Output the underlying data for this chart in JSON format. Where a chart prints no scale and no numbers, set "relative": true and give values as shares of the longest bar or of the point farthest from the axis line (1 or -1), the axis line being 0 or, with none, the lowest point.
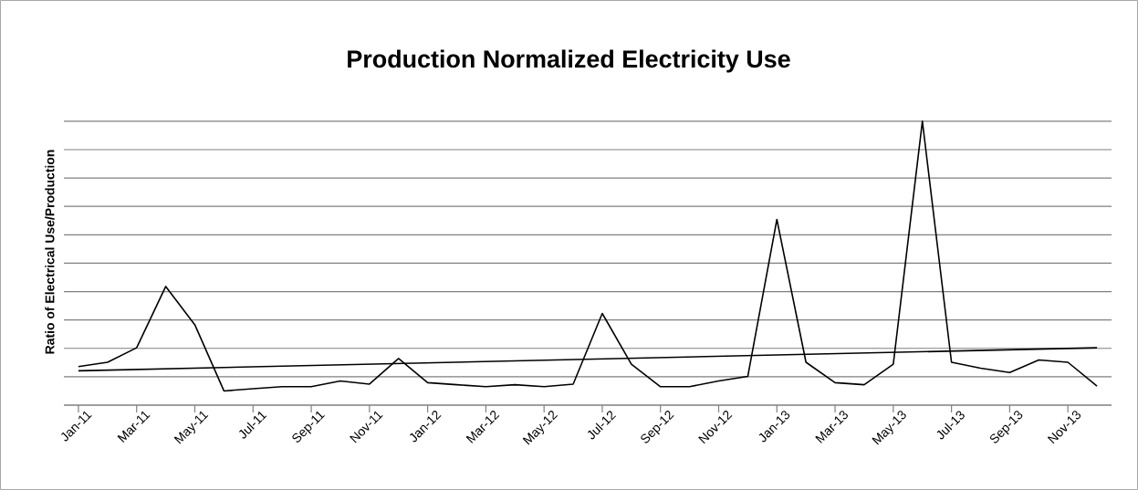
{
  "chart_data": {
    "type": "line",
    "title": "Production Normalized Electricity Use",
    "ylabel": "Ratio of Electrical Use/Production",
    "categories": [
      "Jan-11",
      null,
      "Mar-11",
      null,
      "May-11",
      null,
      "Jul-11",
      null,
      "Sep-11",
      null,
      "Nov-11",
      null,
      "Jan-12",
      null,
      "Mar-12",
      null,
      "May-12",
      null,
      "Jul-12",
      null,
      "Sep-12",
      null,
      "Nov-12",
      null,
      "Jan-13",
      null,
      "Mar-13",
      null,
      "May-13",
      null,
      "Jul-13",
      null,
      "Sep-13",
      null,
      "Nov-13",
      null
    ],
    "relative": true,
    "grid": "y",
    "marker": "none",
    "line_style": "solid",
    "series": [
      {
        "color": "#000000",
        "values": [
          0.136,
          0.151,
          0.202,
          0.418,
          0.283,
          0.05,
          0.058,
          0.065,
          0.065,
          0.085,
          0.074,
          0.164,
          0.079,
          0.072,
          0.065,
          0.072,
          0.065,
          0.074,
          0.323,
          0.144,
          0.065,
          0.065,
          0.085,
          0.101,
          0.654,
          0.151,
          0.079,
          0.072,
          0.144,
          1,
          0.151,
          0.13,
          0.115,
          0.159,
          0.151,
          0.067
        ]
      },
      {
        "type": "line",
        "color": "#000000",
        "values": [
          0.121,
          null,
          null,
          null,
          null,
          null,
          null,
          null,
          null,
          null,
          null,
          null,
          null,
          null,
          null,
          null,
          null,
          null,
          null,
          null,
          null,
          null,
          null,
          null,
          null,
          null,
          null,
          null,
          null,
          null,
          null,
          null,
          null,
          null,
          null,
          0.202
        ]
      }
    ]
  }
}
